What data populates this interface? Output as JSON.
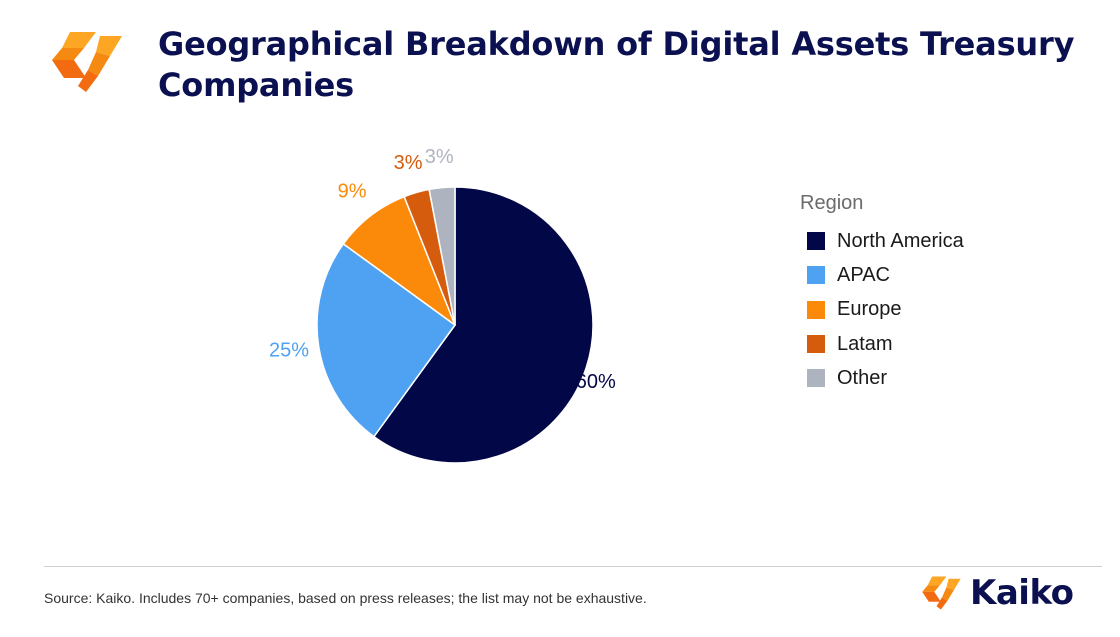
{
  "header": {
    "title": "Geographical Breakdown of Digital Assets Treasury Companies"
  },
  "chart_data": {
    "type": "pie",
    "title": "Geographical Breakdown of Digital Assets Treasury Companies",
    "legend_title": "Region",
    "legend_position": "right",
    "slices": [
      {
        "label": "North America",
        "value": 60,
        "display": "60%",
        "color": "#020747"
      },
      {
        "label": "APAC",
        "value": 25,
        "display": "25%",
        "color": "#4fa2f2"
      },
      {
        "label": "Europe",
        "value": 9,
        "display": "9%",
        "color": "#fc8a0a"
      },
      {
        "label": "Latam",
        "value": 3,
        "display": "3%",
        "color": "#d55b0d"
      },
      {
        "label": "Other",
        "value": 3,
        "display": "3%",
        "color": "#aeb4bf"
      }
    ]
  },
  "footer": {
    "source": "Source: Kaiko.  Includes 70+ companies, based on press releases; the list may not be exhaustive.",
    "brand": "Kaiko"
  },
  "colors": {
    "title": "#0b1150",
    "logo_light": "#fda624",
    "logo_dark": "#f36b10"
  }
}
